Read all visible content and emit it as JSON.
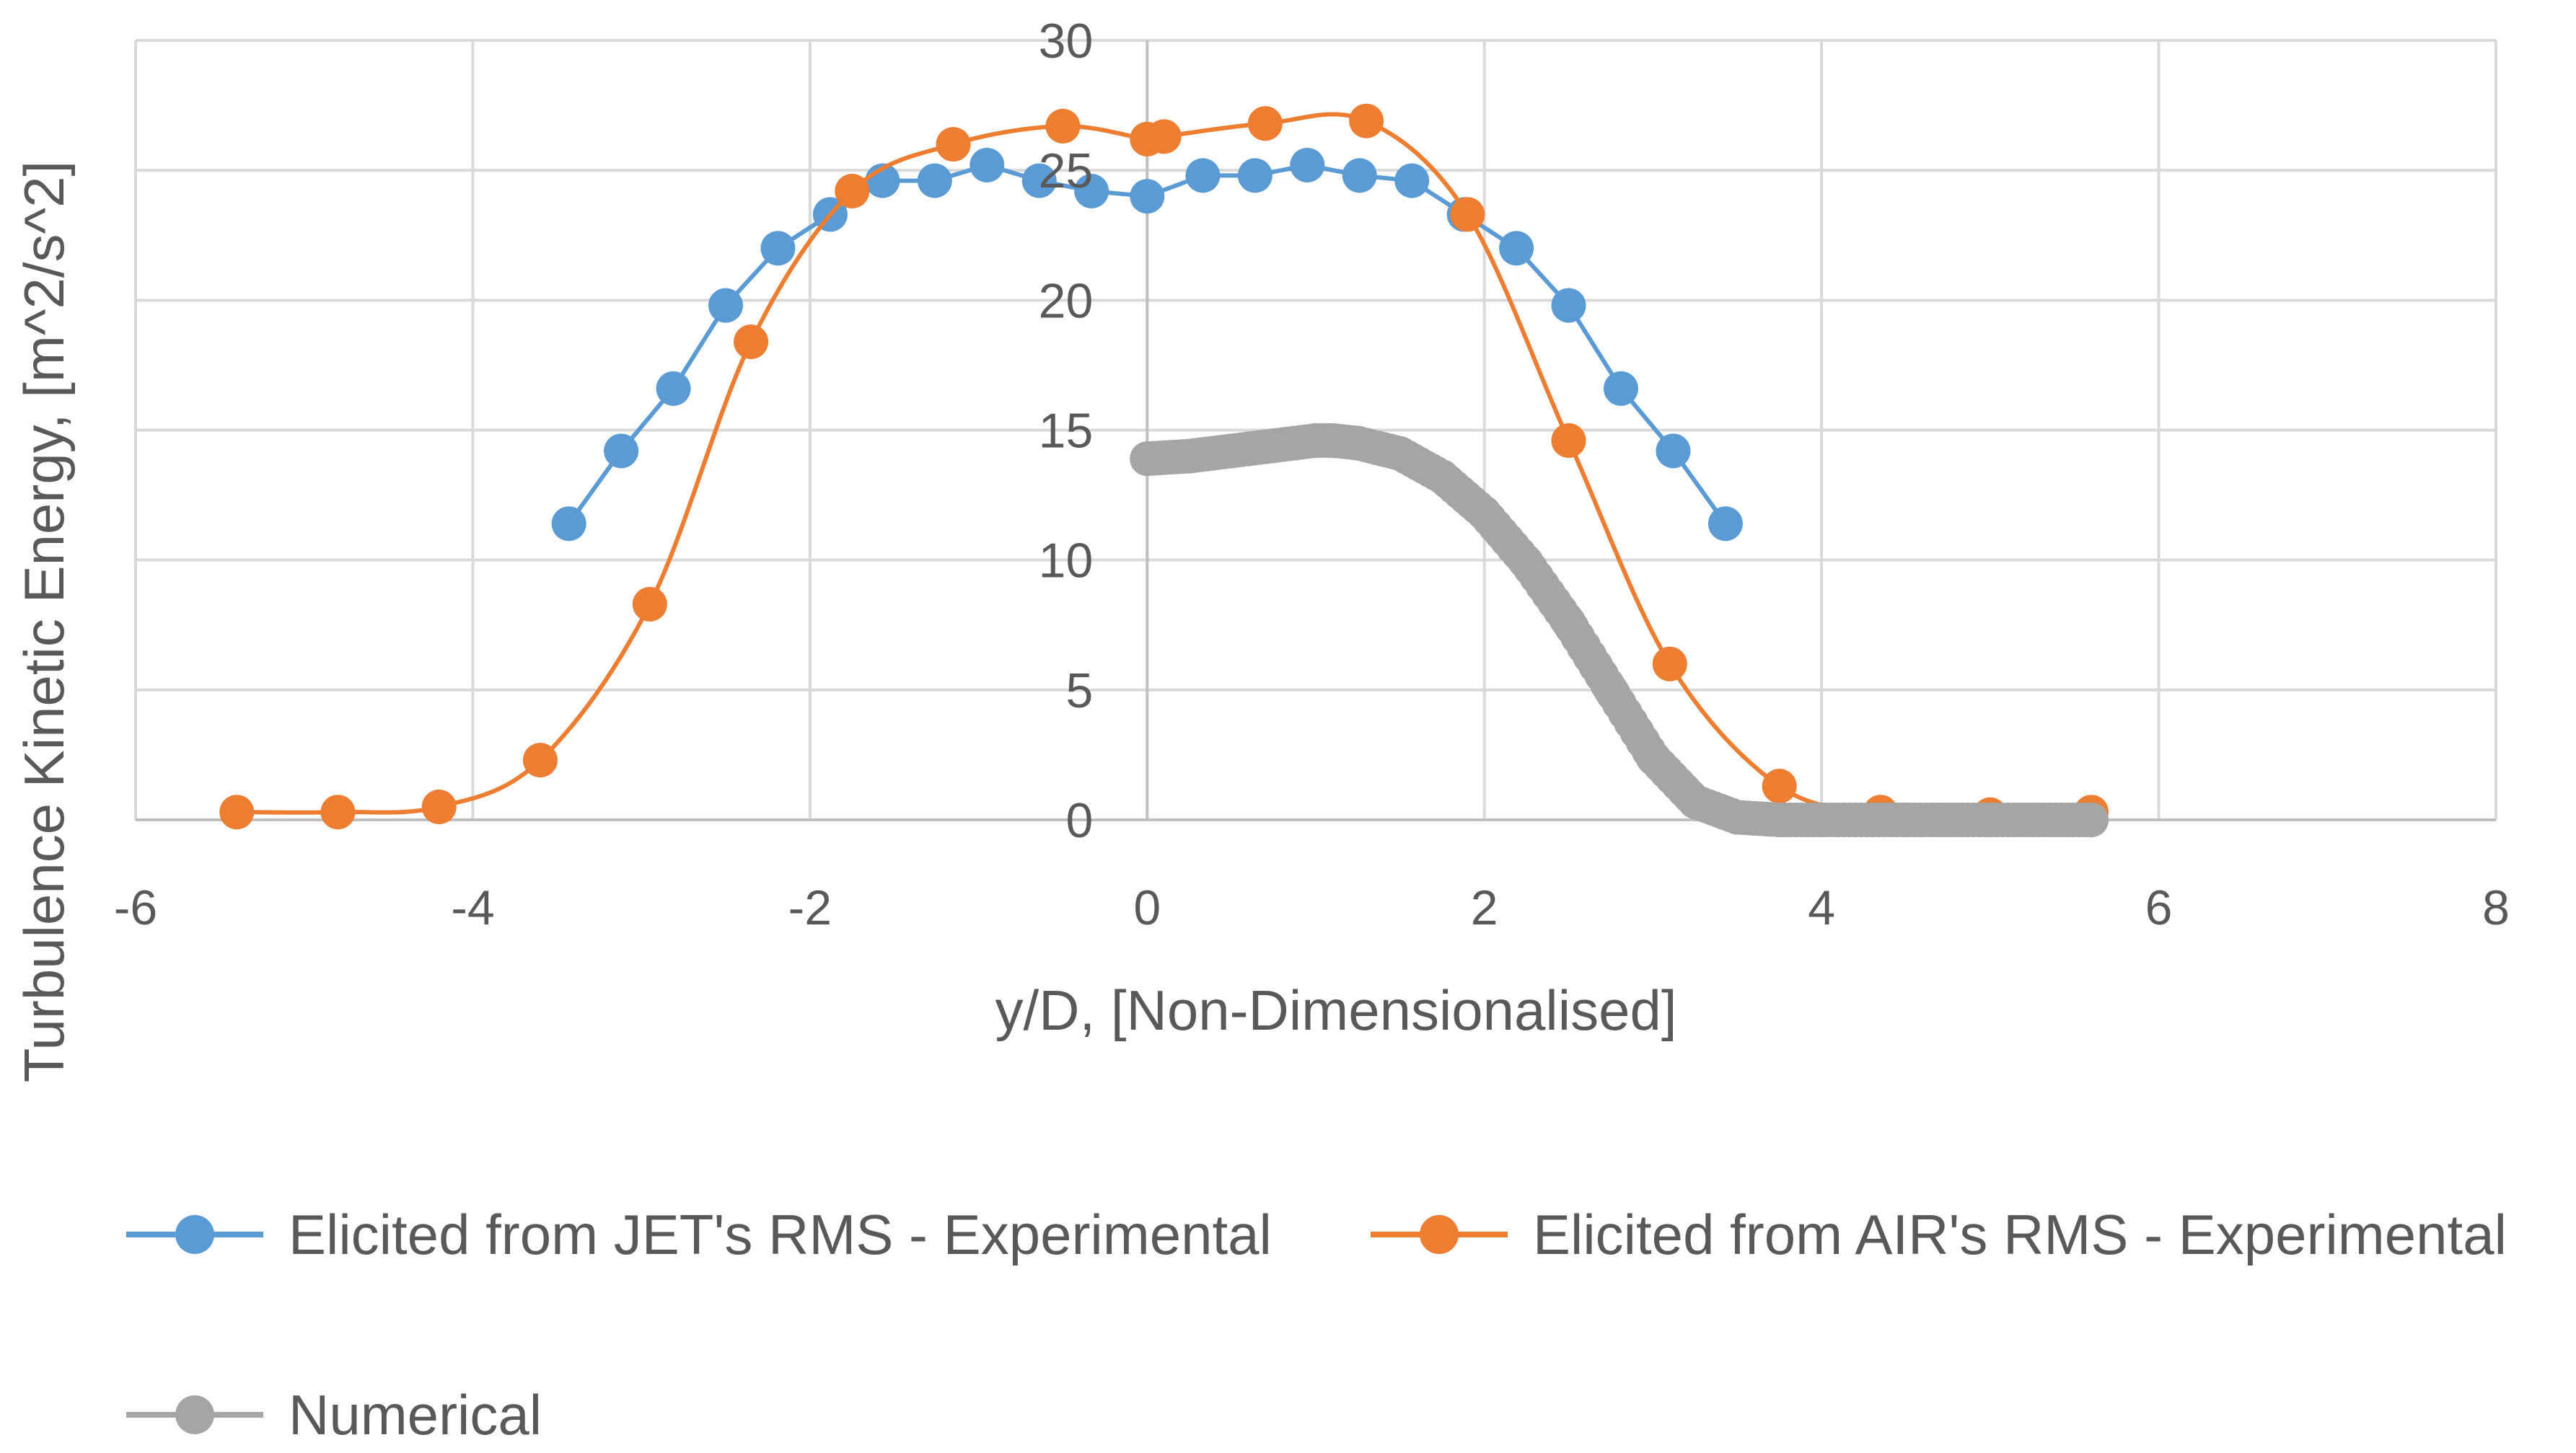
{
  "chart_data": {
    "type": "line",
    "title": "",
    "xlabel": "y/D, [Non-Dimensionalised]",
    "ylabel": "Turbulence Kinetic Energy, [m^2/s^2]",
    "xlim": [
      -6,
      8
    ],
    "ylim": [
      0,
      30
    ],
    "xticks": [
      -6,
      -4,
      -2,
      0,
      2,
      4,
      6,
      8
    ],
    "yticks": [
      0,
      5,
      10,
      15,
      20,
      25,
      30
    ],
    "grid": true,
    "legend_position": "bottom",
    "series": [
      {
        "name": "Elicited from JET's RMS - Experimental",
        "color": "#5B9BD5",
        "smooth": false,
        "x": [
          -3.43,
          -3.12,
          -2.81,
          -2.5,
          -2.19,
          -1.88,
          -1.57,
          -1.26,
          -0.95,
          -0.64,
          -0.33,
          0.0,
          0.33,
          0.64,
          0.95,
          1.26,
          1.57,
          1.88,
          2.19,
          2.5,
          2.81,
          3.12,
          3.43
        ],
        "y": [
          11.4,
          14.2,
          16.6,
          19.8,
          22.0,
          23.3,
          24.6,
          24.6,
          25.2,
          24.6,
          24.2,
          24.0,
          24.8,
          24.8,
          25.2,
          24.8,
          24.6,
          23.3,
          22.0,
          19.8,
          16.6,
          14.2,
          11.4
        ]
      },
      {
        "name": "Elicited from AIR's RMS - Experimental",
        "color": "#ED7D31",
        "smooth": true,
        "x": [
          -5.4,
          -4.8,
          -4.2,
          -3.6,
          -2.95,
          -2.35,
          -1.75,
          -1.15,
          -0.5,
          0.0,
          0.1,
          0.7,
          1.3,
          1.9,
          2.5,
          3.1,
          3.75,
          4.35,
          5.0,
          5.6
        ],
        "y": [
          0.3,
          0.3,
          0.5,
          2.3,
          8.3,
          18.4,
          24.2,
          26.0,
          26.7,
          26.2,
          26.3,
          26.8,
          26.9,
          23.3,
          14.6,
          6.0,
          1.3,
          0.3,
          0.2,
          0.3
        ]
      },
      {
        "name": "Numerical",
        "color": "#A5A5A5",
        "smooth": true,
        "x": [
          0.0,
          0.25,
          0.5,
          0.75,
          1.0,
          1.1,
          1.25,
          1.5,
          1.75,
          2.0,
          2.25,
          2.5,
          2.75,
          3.0,
          3.25,
          3.5,
          3.75,
          4.0,
          4.5,
          5.0,
          5.6
        ],
        "y": [
          13.9,
          14.0,
          14.2,
          14.4,
          14.6,
          14.6,
          14.5,
          14.1,
          13.2,
          11.8,
          9.9,
          7.6,
          5.0,
          2.4,
          0.7,
          0.1,
          0.0,
          0.0,
          0.0,
          0.0,
          0.0
        ]
      }
    ]
  }
}
